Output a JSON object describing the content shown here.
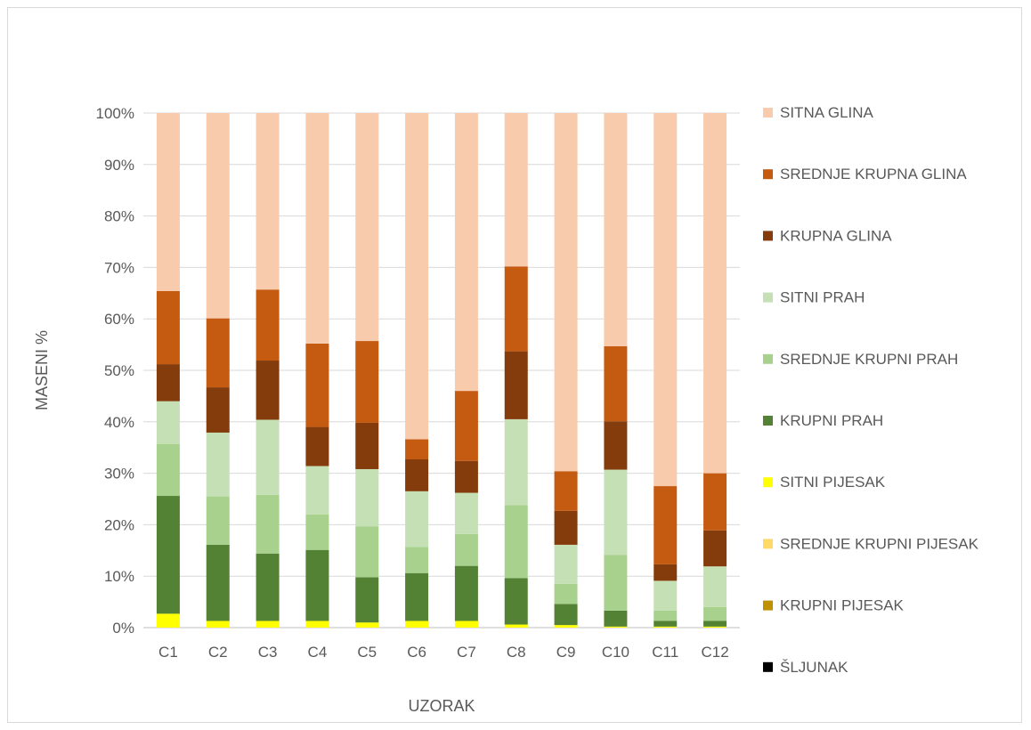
{
  "chart_data": {
    "type": "bar",
    "stacked": "percent",
    "xlabel": "UZORAK",
    "ylabel": "MASENI  %",
    "ylim": [
      0,
      100
    ],
    "yticks": [
      0,
      10,
      20,
      30,
      40,
      50,
      60,
      70,
      80,
      90,
      100
    ],
    "ytick_labels": [
      "0%",
      "10%",
      "20%",
      "30%",
      "40%",
      "50%",
      "60%",
      "70%",
      "80%",
      "90%",
      "100%"
    ],
    "grid": true,
    "legend_position": "right",
    "categories": [
      "C1",
      "C2",
      "C3",
      "C4",
      "C5",
      "C6",
      "C7",
      "C8",
      "C9",
      "C10",
      "C11",
      "C12"
    ],
    "series": [
      {
        "name": "ŠLJUNAK",
        "color": "#000000",
        "values": [
          0,
          0,
          0,
          0,
          0,
          0,
          0,
          0,
          0,
          0,
          0,
          0
        ]
      },
      {
        "name": "KRUPNI PIJESAK",
        "color": "#bf9000",
        "values": [
          0,
          0,
          0,
          0,
          0,
          0,
          0,
          0,
          0,
          0,
          0,
          0
        ]
      },
      {
        "name": "SREDNJE KRUPNI PIJESAK",
        "color": "#ffd966",
        "values": [
          0,
          0,
          0,
          0,
          0,
          0,
          0,
          0,
          0,
          0,
          0,
          0
        ]
      },
      {
        "name": "SITNI PIJESAK",
        "color": "#ffff00",
        "values": [
          2.7,
          1.3,
          1.3,
          1.3,
          1.0,
          1.3,
          1.3,
          0.6,
          0.5,
          0.2,
          0.2,
          0.2
        ]
      },
      {
        "name": "KRUPNI PRAH",
        "color": "#548235",
        "values": [
          22.9,
          14.8,
          13.1,
          13.8,
          8.8,
          9.3,
          10.7,
          9.0,
          4.1,
          3.1,
          1.1,
          1.1
        ]
      },
      {
        "name": "SREDNJE KRUPNI PRAH",
        "color": "#a9d18e",
        "values": [
          10.1,
          9.4,
          11.4,
          6.9,
          9.9,
          5.1,
          6.2,
          14.2,
          3.9,
          10.8,
          2.0,
          2.7
        ]
      },
      {
        "name": "SITNI PRAH",
        "color": "#c5e0b4",
        "values": [
          8.3,
          12.4,
          14.6,
          9.4,
          11.1,
          10.8,
          8.0,
          16.7,
          7.6,
          16.6,
          5.8,
          7.9
        ]
      },
      {
        "name": "KRUPNA GLINA",
        "color": "#843c0c",
        "values": [
          7.2,
          8.8,
          11.5,
          7.6,
          9.0,
          6.2,
          6.2,
          13.2,
          6.6,
          9.4,
          3.2,
          7.0
        ]
      },
      {
        "name": "SREDNJE KRUPNA GLINA",
        "color": "#c55a11",
        "values": [
          14.2,
          13.4,
          13.8,
          16.2,
          15.9,
          3.9,
          13.6,
          16.5,
          7.7,
          14.6,
          15.2,
          11.1
        ]
      },
      {
        "name": "SITNA GLINA",
        "color": "#f8cbad",
        "values": [
          34.6,
          39.9,
          34.3,
          44.8,
          44.3,
          63.4,
          54.0,
          29.8,
          69.6,
          45.3,
          72.5,
          70.0
        ]
      }
    ]
  }
}
